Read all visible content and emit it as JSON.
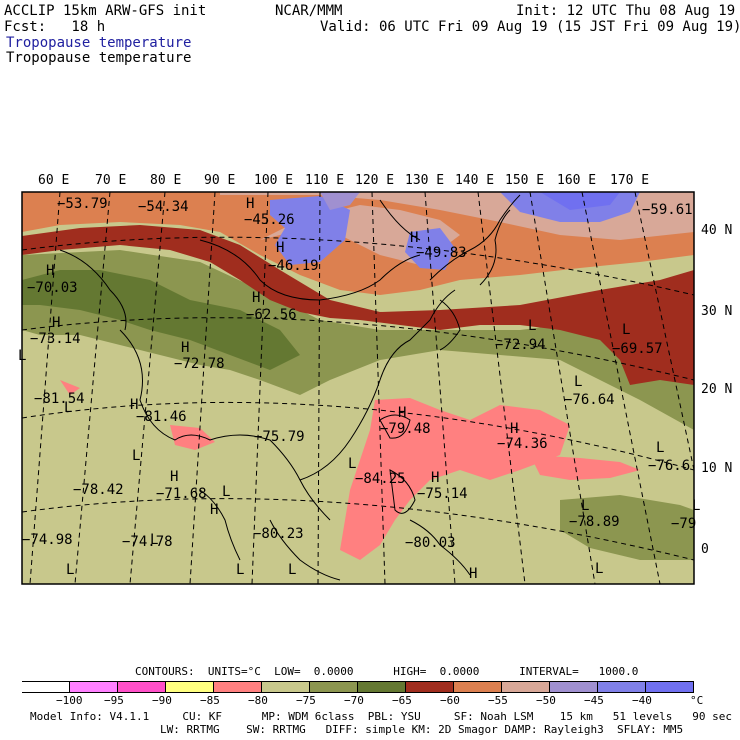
{
  "header": {
    "model_line": "ACCLIP 15km ARW-GFS init",
    "org": "NCAR/MMM",
    "init": "Init: 12 UTC Thu 08 Aug 19",
    "fcst": "Fcst:   18 h",
    "valid": "Valid: 06 UTC Fri 09 Aug 19 (15 JST Fri 09 Aug 19)",
    "field_title_blue": "Tropopause temperature",
    "field_title_black": "Tropopause temperature"
  },
  "longitude_labels": [
    "60 E",
    "70 E",
    "80 E",
    "90 E",
    "100 E",
    "110 E",
    "120 E",
    "130 E",
    "140 E",
    "150 E",
    "160 E",
    "170 E"
  ],
  "latitude_labels": [
    "40 N",
    "30 N",
    "20 N",
    "10 N",
    "0"
  ],
  "map_markers": [
    {
      "kind": "H",
      "text": "H"
    },
    {
      "kind": "L",
      "text": "L"
    }
  ],
  "value_labels": [
    "−53.79",
    "−54.34",
    "−45.26",
    "−46.19",
    "−49.83",
    "−59.61",
    "−70.03",
    "−62.56",
    "−73.14",
    "−72.78",
    "−72.94",
    "−69.57",
    "−81.54",
    "−81.46",
    "−75.79",
    "−79.48",
    "−76.64",
    "−74.36",
    "−76.6",
    "−78.42",
    "−71.68",
    "−84.25",
    "−75.14",
    "−74.98",
    "−74.78",
    "−80.23",
    "−80.03",
    "−78.89",
    "−79"
  ],
  "legend": {
    "contours_line": "CONTOURS:  UNITS=°C  LOW=  0.0000      HIGH=  0.0000      INTERVAL=   1000.0",
    "unit": "°C",
    "ticks": [
      "−100",
      "−95",
      "−90",
      "−85",
      "−80",
      "−75",
      "−70",
      "−65",
      "−60",
      "−55",
      "−50",
      "−45",
      "−40"
    ],
    "colors": [
      "#ffffff",
      "#ff80ff",
      "#ff50c8",
      "#ffff80",
      "#ff8080",
      "#c8c88c",
      "#8c9650",
      "#647832",
      "#a02d1e",
      "#dc8050",
      "#d8a898",
      "#a090d0",
      "#8080e8",
      "#7070f0"
    ]
  },
  "model_info": {
    "line1": "Model Info: V4.1.1     CU: KF      MP: WDM 6class  PBL: YSU     SF: Noah LSM    15 km   51 levels   90 sec",
    "line2": "LW: RRTMG    SW: RRTMG   DIFF: simple KM: 2D Smagor DAMP: Rayleigh3  SFLAY: MM5"
  }
}
